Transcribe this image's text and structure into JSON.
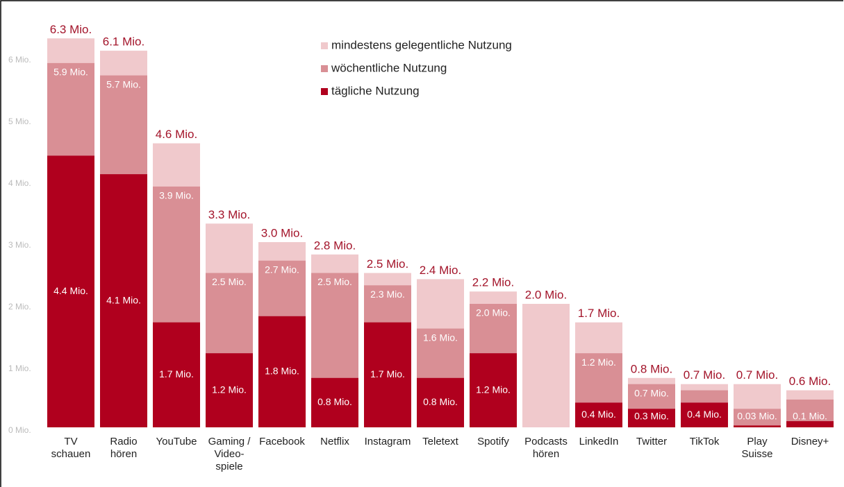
{
  "chart_data": {
    "type": "bar",
    "overlap": true,
    "categories": [
      "TV schauen",
      "Radio hören",
      "YouTube",
      "Gaming / Video-spiele",
      "Facebook",
      "Netflix",
      "Instagram",
      "Teletext",
      "Spotify",
      "Podcasts hören",
      "LinkedIn",
      "Twitter",
      "TikTok",
      "Play Suisse",
      "Disney+"
    ],
    "series": [
      {
        "name": "mindestens gelegentliche Nutzung",
        "color": "#f0c9cc",
        "values": [
          6.3,
          6.1,
          4.6,
          3.3,
          3.0,
          2.8,
          2.5,
          2.4,
          2.2,
          2.0,
          1.7,
          0.8,
          0.7,
          0.7,
          0.6
        ],
        "value_labels": [
          "6.3 Mio.",
          "6.1 Mio.",
          "4.6 Mio.",
          "3.3 Mio.",
          "3.0 Mio.",
          "2.8 Mio.",
          "2.5 Mio.",
          "2.4 Mio.",
          "2.2 Mio.",
          "2.0 Mio.",
          "1.7 Mio.",
          "0.8 Mio.",
          "0.7 Mio.",
          "0.7 Mio.",
          "0.6 Mio."
        ]
      },
      {
        "name": "wöchentliche Nutzung",
        "color": "#d98f95",
        "values": [
          5.9,
          5.7,
          3.9,
          2.5,
          2.7,
          2.5,
          2.3,
          1.6,
          2.0,
          null,
          1.2,
          0.7,
          0.6,
          0.3,
          0.45
        ],
        "value_labels": [
          "5.9 Mio.",
          "5.7 Mio.",
          "3.9 Mio.",
          "2.5 Mio.",
          "2.7 Mio.",
          "2.5 Mio.",
          "2.3 Mio.",
          "1.6 Mio.",
          "2.0 Mio.",
          null,
          "1.2 Mio.",
          "0.7 Mio.",
          null,
          null,
          null
        ]
      },
      {
        "name": "tägliche Nutzung",
        "color": "#b0001e",
        "values": [
          4.4,
          4.1,
          1.7,
          1.2,
          1.8,
          0.8,
          1.7,
          0.8,
          1.2,
          null,
          0.4,
          0.3,
          0.4,
          0.03,
          0.1
        ],
        "value_labels": [
          "4.4 Mio.",
          "4.1 Mio.",
          "1.7 Mio.",
          "1.2 Mio.",
          "1.8 Mio.",
          "0.8 Mio.",
          "1.7 Mio.",
          "0.8 Mio.",
          "1.2 Mio.",
          null,
          "0.4 Mio.",
          "0.3 Mio.",
          "0.4 Mio.",
          "0.03 Mio.",
          "0.1 Mio."
        ]
      }
    ],
    "ylim": [
      0,
      6.5
    ],
    "yticks": [
      {
        "value": 0,
        "label": "0 Mio."
      },
      {
        "value": 1,
        "label": "1 Mio."
      },
      {
        "value": 2,
        "label": "2 Mio."
      },
      {
        "value": 3,
        "label": "3 Mio."
      },
      {
        "value": 4,
        "label": "4 Mio."
      },
      {
        "value": 5,
        "label": "5 Mio."
      },
      {
        "value": 6,
        "label": "6 Mio."
      }
    ],
    "legend": "top"
  }
}
